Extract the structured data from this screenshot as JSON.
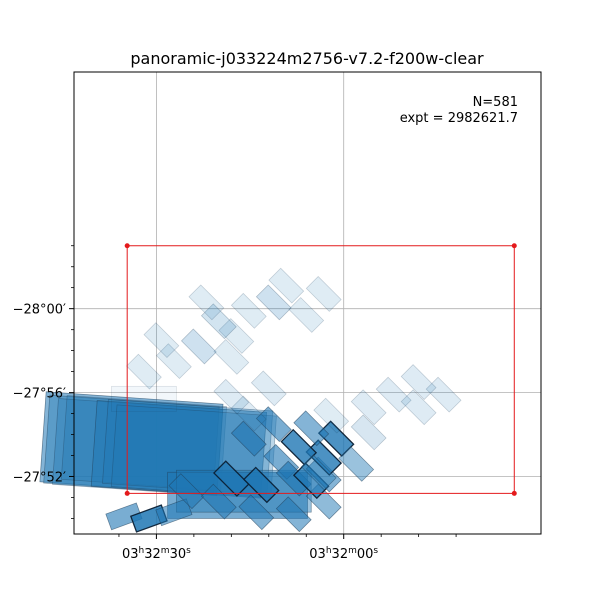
{
  "chart_data": {
    "type": "footprint-map",
    "title": "panoramic-j033224m2756-v7.2-f200w-clear",
    "xlabel": "",
    "ylabel": "",
    "xlim_ra_deg": [
      53.158,
      52.971
    ],
    "ylim_dec_deg": [
      -28.188,
      -27.821
    ],
    "x_ticks": [
      {
        "ra_deg": 53.125,
        "label": "03h32m30s"
      },
      {
        "ra_deg": 53.05,
        "label": "03h32m00s"
      }
    ],
    "y_ticks": [
      {
        "dec_deg": -27.8667,
        "label": "−27°52′"
      },
      {
        "dec_deg": -27.9333,
        "label": "−27°56′"
      },
      {
        "dec_deg": -28.0,
        "label": "−28°00′"
      }
    ],
    "x_minor_ticks_ra_deg": [
      53.14,
      53.11,
      53.095,
      53.08,
      53.065,
      53.035,
      53.02,
      53.005
    ],
    "y_minor_ticks_dec_deg": [
      -27.8333,
      -27.85,
      -27.8833,
      -27.9,
      -27.9167,
      -27.95,
      -27.9667,
      -27.9833,
      -28.0167,
      -28.0333,
      -28.05
    ],
    "grid": true,
    "annotations": {
      "count": "N=581",
      "exposure": "expt = 2982621.7"
    },
    "colors": {
      "footprint_fill": "#1f77b4",
      "highlight_fill": "#1f77b4",
      "outline": "#e41a1c"
    },
    "outline_box": [
      {
        "ra": 53.1367,
        "dec": -27.8533
      },
      {
        "ra": 52.9817,
        "dec": -27.8533
      },
      {
        "ra": 52.9817,
        "dec": -28.05
      },
      {
        "ra": 53.1367,
        "dec": -28.05
      }
    ],
    "footprints": [
      {
        "ra": 53.135,
        "dec": -27.8933,
        "w": 0.071,
        "h": 0.0717,
        "rot": 4,
        "alpha": 0.55
      },
      {
        "ra": 53.135,
        "dec": -27.8917,
        "w": 0.068,
        "h": 0.07,
        "rot": 4,
        "alpha": 0.4
      },
      {
        "ra": 53.1325,
        "dec": -27.89,
        "w": 0.066,
        "h": 0.0683,
        "rot": 4,
        "alpha": 0.35
      },
      {
        "ra": 53.13,
        "dec": -27.8933,
        "w": 0.064,
        "h": 0.0667,
        "rot": 4,
        "alpha": 0.3
      },
      {
        "ra": 53.116,
        "dec": -27.8883,
        "w": 0.068,
        "h": 0.0683,
        "rot": 4,
        "alpha": 0.5
      },
      {
        "ra": 53.1125,
        "dec": -27.89,
        "w": 0.066,
        "h": 0.0667,
        "rot": 4,
        "alpha": 0.35
      },
      {
        "ra": 53.11,
        "dec": -27.8867,
        "w": 0.064,
        "h": 0.065,
        "rot": 4,
        "alpha": 0.3
      },
      {
        "ra": 53.0925,
        "dec": -27.8517,
        "w": 0.056,
        "h": 0.0367,
        "rot": 0,
        "alpha": 0.6
      },
      {
        "ra": 53.09,
        "dec": -27.855,
        "w": 0.054,
        "h": 0.0333,
        "rot": 0,
        "alpha": 0.45
      },
      {
        "ra": 53.138,
        "dec": -27.835,
        "w": 0.013,
        "h": 0.0133,
        "rot": -20,
        "alpha": 0.6
      },
      {
        "ra": 53.128,
        "dec": -27.8333,
        "w": 0.013,
        "h": 0.0133,
        "rot": -20,
        "alpha": 0.85,
        "edge": true
      },
      {
        "ra": 53.118,
        "dec": -27.8383,
        "w": 0.013,
        "h": 0.0133,
        "rot": -20,
        "alpha": 0.55
      },
      {
        "ra": 53.113,
        "dec": -27.855,
        "w": 0.013,
        "h": 0.0133,
        "rot": 45,
        "alpha": 0.55
      },
      {
        "ra": 53.1,
        "dec": -27.8467,
        "w": 0.013,
        "h": 0.0133,
        "rot": 45,
        "alpha": 0.55
      },
      {
        "ra": 53.085,
        "dec": -27.8383,
        "w": 0.013,
        "h": 0.0133,
        "rot": 45,
        "alpha": 0.55
      },
      {
        "ra": 53.07,
        "dec": -27.8367,
        "w": 0.013,
        "h": 0.0133,
        "rot": 45,
        "alpha": 0.55
      },
      {
        "ra": 53.058,
        "dec": -27.8467,
        "w": 0.013,
        "h": 0.0133,
        "rot": 45,
        "alpha": 0.5
      },
      {
        "ra": 53.095,
        "dec": -27.865,
        "w": 0.013,
        "h": 0.0133,
        "rot": 45,
        "alpha": 0.75,
        "edge": true
      },
      {
        "ra": 53.083,
        "dec": -27.86,
        "w": 0.013,
        "h": 0.0133,
        "rot": 45,
        "alpha": 0.8,
        "edge": true
      },
      {
        "ra": 53.075,
        "dec": -27.8783,
        "w": 0.013,
        "h": 0.0133,
        "rot": 45,
        "alpha": 0.6
      },
      {
        "ra": 53.07,
        "dec": -27.865,
        "w": 0.013,
        "h": 0.0133,
        "rot": 45,
        "alpha": 0.65
      },
      {
        "ra": 53.063,
        "dec": -27.8633,
        "w": 0.013,
        "h": 0.0133,
        "rot": 45,
        "alpha": 0.75,
        "edge": true
      },
      {
        "ra": 53.058,
        "dec": -27.8683,
        "w": 0.013,
        "h": 0.0133,
        "rot": 45,
        "alpha": 0.55
      },
      {
        "ra": 53.058,
        "dec": -27.8817,
        "w": 0.013,
        "h": 0.0133,
        "rot": 45,
        "alpha": 0.8,
        "edge": true
      },
      {
        "ra": 53.068,
        "dec": -27.89,
        "w": 0.013,
        "h": 0.0133,
        "rot": 45,
        "alpha": 0.8,
        "edge": true
      },
      {
        "ra": 53.053,
        "dec": -27.8967,
        "w": 0.013,
        "h": 0.0133,
        "rot": 45,
        "alpha": 0.8,
        "edge": true
      },
      {
        "ra": 53.088,
        "dec": -27.8967,
        "w": 0.013,
        "h": 0.0133,
        "rot": 45,
        "alpha": 0.6
      },
      {
        "ra": 53.078,
        "dec": -27.9083,
        "w": 0.013,
        "h": 0.0133,
        "rot": 45,
        "alpha": 0.6
      },
      {
        "ra": 53.063,
        "dec": -27.905,
        "w": 0.013,
        "h": 0.0133,
        "rot": 45,
        "alpha": 0.55
      },
      {
        "ra": 53.045,
        "dec": -27.8767,
        "w": 0.013,
        "h": 0.0133,
        "rot": 45,
        "alpha": 0.45
      },
      {
        "ra": 53.04,
        "dec": -27.9017,
        "w": 0.013,
        "h": 0.0133,
        "rot": 45,
        "alpha": 0.18
      },
      {
        "ra": 53.088,
        "dec": -27.9167,
        "w": 0.013,
        "h": 0.0133,
        "rot": 45,
        "alpha": 0.15
      },
      {
        "ra": 53.095,
        "dec": -27.93,
        "w": 0.013,
        "h": 0.0133,
        "rot": 45,
        "alpha": 0.15
      },
      {
        "ra": 53.08,
        "dec": -27.9367,
        "w": 0.013,
        "h": 0.0133,
        "rot": 45,
        "alpha": 0.15
      },
      {
        "ra": 53.06,
        "dec": -27.87,
        "w": 0.013,
        "h": 0.0133,
        "rot": 45,
        "alpha": 0.4
      },
      {
        "ra": 53.04,
        "dec": -27.9217,
        "w": 0.013,
        "h": 0.0133,
        "rot": 45,
        "alpha": 0.15
      },
      {
        "ra": 53.03,
        "dec": -27.9317,
        "w": 0.013,
        "h": 0.0133,
        "rot": 45,
        "alpha": 0.15
      },
      {
        "ra": 53.02,
        "dec": -27.9217,
        "w": 0.013,
        "h": 0.0133,
        "rot": 45,
        "alpha": 0.15
      },
      {
        "ra": 53.01,
        "dec": -27.9317,
        "w": 0.013,
        "h": 0.0133,
        "rot": 45,
        "alpha": 0.15
      },
      {
        "ra": 53.02,
        "dec": -27.9417,
        "w": 0.013,
        "h": 0.0133,
        "rot": 45,
        "alpha": 0.15
      },
      {
        "ra": 53.13,
        "dec": -27.95,
        "w": 0.013,
        "h": 0.0133,
        "rot": 45,
        "alpha": 0.14
      },
      {
        "ra": 53.118,
        "dec": -27.9583,
        "w": 0.013,
        "h": 0.0133,
        "rot": 45,
        "alpha": 0.14
      },
      {
        "ra": 53.108,
        "dec": -27.97,
        "w": 0.013,
        "h": 0.0133,
        "rot": 45,
        "alpha": 0.22
      },
      {
        "ra": 53.095,
        "dec": -27.9617,
        "w": 0.013,
        "h": 0.0133,
        "rot": 45,
        "alpha": 0.14
      },
      {
        "ra": 53.123,
        "dec": -27.975,
        "w": 0.013,
        "h": 0.0133,
        "rot": 45,
        "alpha": 0.14
      },
      {
        "ra": 53.093,
        "dec": -27.9783,
        "w": 0.013,
        "h": 0.0133,
        "rot": 45,
        "alpha": 0.14
      },
      {
        "ra": 53.1,
        "dec": -27.99,
        "w": 0.013,
        "h": 0.0133,
        "rot": 45,
        "alpha": 0.2
      },
      {
        "ra": 53.088,
        "dec": -27.9983,
        "w": 0.013,
        "h": 0.0133,
        "rot": 45,
        "alpha": 0.14
      },
      {
        "ra": 53.078,
        "dec": -28.005,
        "w": 0.013,
        "h": 0.0133,
        "rot": 45,
        "alpha": 0.22
      },
      {
        "ra": 53.065,
        "dec": -27.995,
        "w": 0.013,
        "h": 0.0133,
        "rot": 45,
        "alpha": 0.14
      },
      {
        "ra": 53.058,
        "dec": -28.0117,
        "w": 0.013,
        "h": 0.0133,
        "rot": 45,
        "alpha": 0.14
      },
      {
        "ra": 53.073,
        "dec": -28.0183,
        "w": 0.013,
        "h": 0.0133,
        "rot": 45,
        "alpha": 0.14
      },
      {
        "ra": 53.105,
        "dec": -28.005,
        "w": 0.013,
        "h": 0.0133,
        "rot": 45,
        "alpha": 0.14
      },
      {
        "ra": 53.055,
        "dec": -27.915,
        "w": 0.013,
        "h": 0.0133,
        "rot": 45,
        "alpha": 0.14
      },
      {
        "ra": 53.13,
        "dec": -27.9283,
        "w": 0.026,
        "h": 0.02,
        "rot": 0,
        "alpha": 0.06
      }
    ]
  }
}
